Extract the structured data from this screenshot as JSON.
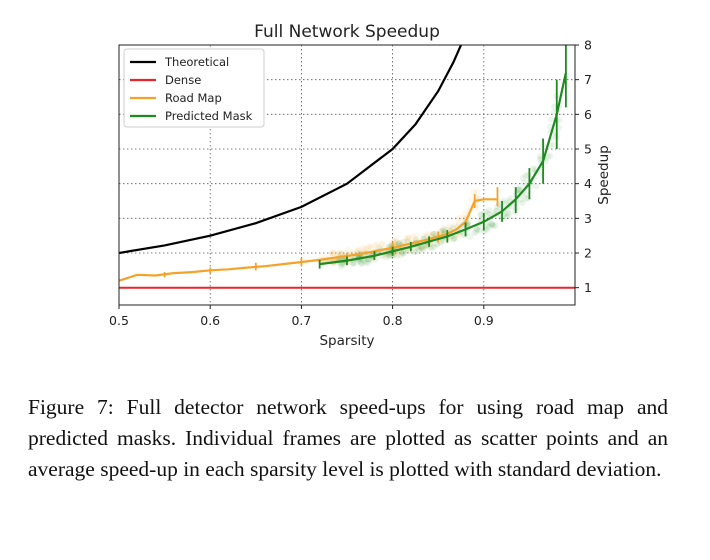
{
  "chart_data": {
    "type": "line",
    "title": "Full Network Speedup",
    "xlabel": "Sparsity",
    "ylabel": "Speedup",
    "xlim": [
      0.5,
      1.0
    ],
    "ylim": [
      0.5,
      8.0
    ],
    "xticks": [
      "0.5",
      "0.6",
      "0.7",
      "0.8",
      "0.9"
    ],
    "yticks": [
      "1",
      "2",
      "3",
      "4",
      "5",
      "6",
      "7",
      "8"
    ],
    "y_axis_side": "right",
    "grid": "dotted",
    "legend_position": "top-left",
    "series": [
      {
        "name": "Theoretical",
        "color": "#000000",
        "x": [
          0.5,
          0.55,
          0.6,
          0.65,
          0.7,
          0.75,
          0.8,
          0.825,
          0.85,
          0.8667,
          0.875,
          0.8889
        ],
        "y": [
          2.0,
          2.22,
          2.5,
          2.86,
          3.33,
          4.0,
          5.0,
          5.71,
          6.67,
          7.5,
          8.0,
          9.0
        ]
      },
      {
        "name": "Dense",
        "color": "#e8262a",
        "x": [
          0.5,
          1.0
        ],
        "y": [
          1.0,
          1.0
        ]
      },
      {
        "name": "Road Map",
        "color": "#f5a22a",
        "x": [
          0.5,
          0.52,
          0.54,
          0.56,
          0.58,
          0.6,
          0.62,
          0.64,
          0.66,
          0.68,
          0.7,
          0.72,
          0.74,
          0.76,
          0.78,
          0.8,
          0.82,
          0.84,
          0.86,
          0.87,
          0.88,
          0.89,
          0.9,
          0.91,
          0.915
        ],
        "y": [
          1.2,
          1.37,
          1.35,
          1.42,
          1.45,
          1.5,
          1.53,
          1.58,
          1.62,
          1.68,
          1.74,
          1.8,
          1.88,
          1.95,
          2.05,
          2.15,
          2.27,
          2.4,
          2.55,
          2.68,
          2.9,
          3.5,
          3.55,
          3.55,
          3.55
        ],
        "error_bars": [
          {
            "x": 0.55,
            "low": 1.3,
            "high": 1.45
          },
          {
            "x": 0.6,
            "low": 1.42,
            "high": 1.58
          },
          {
            "x": 0.65,
            "low": 1.5,
            "high": 1.72
          },
          {
            "x": 0.7,
            "low": 1.62,
            "high": 1.86
          },
          {
            "x": 0.75,
            "low": 1.78,
            "high": 2.0
          },
          {
            "x": 0.8,
            "low": 2.0,
            "high": 2.3
          },
          {
            "x": 0.85,
            "low": 2.3,
            "high": 2.62
          },
          {
            "x": 0.89,
            "low": 3.3,
            "high": 3.7
          },
          {
            "x": 0.915,
            "low": 3.35,
            "high": 3.9
          }
        ]
      },
      {
        "name": "Predicted Mask",
        "color": "#1f8a1f",
        "x": [
          0.72,
          0.75,
          0.78,
          0.8,
          0.82,
          0.84,
          0.86,
          0.88,
          0.9,
          0.92,
          0.935,
          0.95,
          0.965,
          0.98,
          0.99
        ],
        "y": [
          1.68,
          1.78,
          1.92,
          2.05,
          2.18,
          2.33,
          2.48,
          2.68,
          2.9,
          3.2,
          3.55,
          4.0,
          4.65,
          6.0,
          7.2
        ],
        "error_bars": [
          {
            "x": 0.72,
            "low": 1.55,
            "high": 1.8
          },
          {
            "x": 0.75,
            "low": 1.65,
            "high": 1.9
          },
          {
            "x": 0.78,
            "low": 1.8,
            "high": 2.05
          },
          {
            "x": 0.8,
            "low": 1.92,
            "high": 2.18
          },
          {
            "x": 0.82,
            "low": 2.05,
            "high": 2.32
          },
          {
            "x": 0.84,
            "low": 2.18,
            "high": 2.48
          },
          {
            "x": 0.86,
            "low": 2.3,
            "high": 2.66
          },
          {
            "x": 0.88,
            "low": 2.48,
            "high": 2.88
          },
          {
            "x": 0.9,
            "low": 2.65,
            "high": 3.15
          },
          {
            "x": 0.92,
            "low": 2.9,
            "high": 3.5
          },
          {
            "x": 0.935,
            "low": 3.15,
            "high": 3.9
          },
          {
            "x": 0.95,
            "low": 3.55,
            "high": 4.45
          },
          {
            "x": 0.965,
            "low": 4.0,
            "high": 5.3
          },
          {
            "x": 0.98,
            "low": 5.0,
            "high": 7.0
          },
          {
            "x": 0.99,
            "low": 6.2,
            "high": 8.2
          }
        ]
      }
    ]
  },
  "caption": "Figure 7: Full detector network speed-ups for using road map and predicted masks. Individual frames are plotted as scatter points and an average speed-up in each sparsity level is plotted with standard deviation."
}
